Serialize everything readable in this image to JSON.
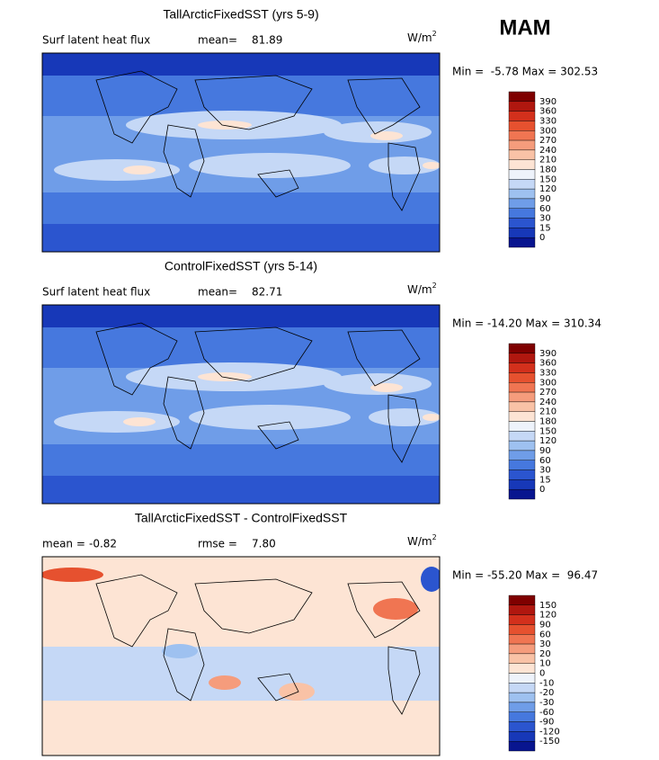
{
  "season": "MAM",
  "panels": [
    {
      "title": "TallArcticFixedSST (yrs 5-9)",
      "variable": "Surf latent heat flux",
      "stats": [
        {
          "label": "mean=",
          "value": "81.89"
        }
      ],
      "units": {
        "base": "W/m",
        "sup": "2"
      },
      "range": "Min =  -5.78 Max = 302.53",
      "levels": [
        390,
        360,
        330,
        300,
        270,
        240,
        210,
        180,
        150,
        120,
        90,
        60,
        30,
        15,
        0
      ],
      "colors": [
        "#7f0000",
        "#b0170f",
        "#d3301c",
        "#e6512f",
        "#f07552",
        "#f59c7c",
        "#f9c2a6",
        "#fde4d4",
        "#eef3fb",
        "#c5d8f6",
        "#9ec1f0",
        "#6f9de8",
        "#4678de",
        "#2b55cf",
        "#1738b8",
        "#08158f"
      ]
    },
    {
      "title": "ControlFixedSST (yrs 5-14)",
      "variable": "Surf latent heat flux",
      "stats": [
        {
          "label": "mean=",
          "value": "82.71"
        }
      ],
      "units": {
        "base": "W/m",
        "sup": "2"
      },
      "range": "Min = -14.20 Max = 310.34",
      "levels": [
        390,
        360,
        330,
        300,
        270,
        240,
        210,
        180,
        150,
        120,
        90,
        60,
        30,
        15,
        0
      ],
      "colors": [
        "#7f0000",
        "#b0170f",
        "#d3301c",
        "#e6512f",
        "#f07552",
        "#f59c7c",
        "#f9c2a6",
        "#fde4d4",
        "#eef3fb",
        "#c5d8f6",
        "#9ec1f0",
        "#6f9de8",
        "#4678de",
        "#2b55cf",
        "#1738b8",
        "#08158f"
      ]
    },
    {
      "title": "TallArcticFixedSST - ControlFixedSST",
      "variable": null,
      "stats": [
        {
          "label": "mean =",
          "value": "-0.82"
        },
        {
          "label": "rmse =",
          "value": "7.80"
        }
      ],
      "units": {
        "base": "W/m",
        "sup": "2"
      },
      "range": "Min = -55.20 Max =  96.47",
      "levels": [
        150,
        120,
        90,
        60,
        30,
        20,
        10,
        0,
        -10,
        -20,
        -30,
        -60,
        -90,
        -120,
        -150
      ],
      "colors": [
        "#7f0000",
        "#b0170f",
        "#d3301c",
        "#e6512f",
        "#f07552",
        "#f59c7c",
        "#f9c2a6",
        "#fde4d4",
        "#eef3fb",
        "#c5d8f6",
        "#9ec1f0",
        "#6f9de8",
        "#4678de",
        "#2b55cf",
        "#1738b8",
        "#08158f"
      ]
    }
  ]
}
